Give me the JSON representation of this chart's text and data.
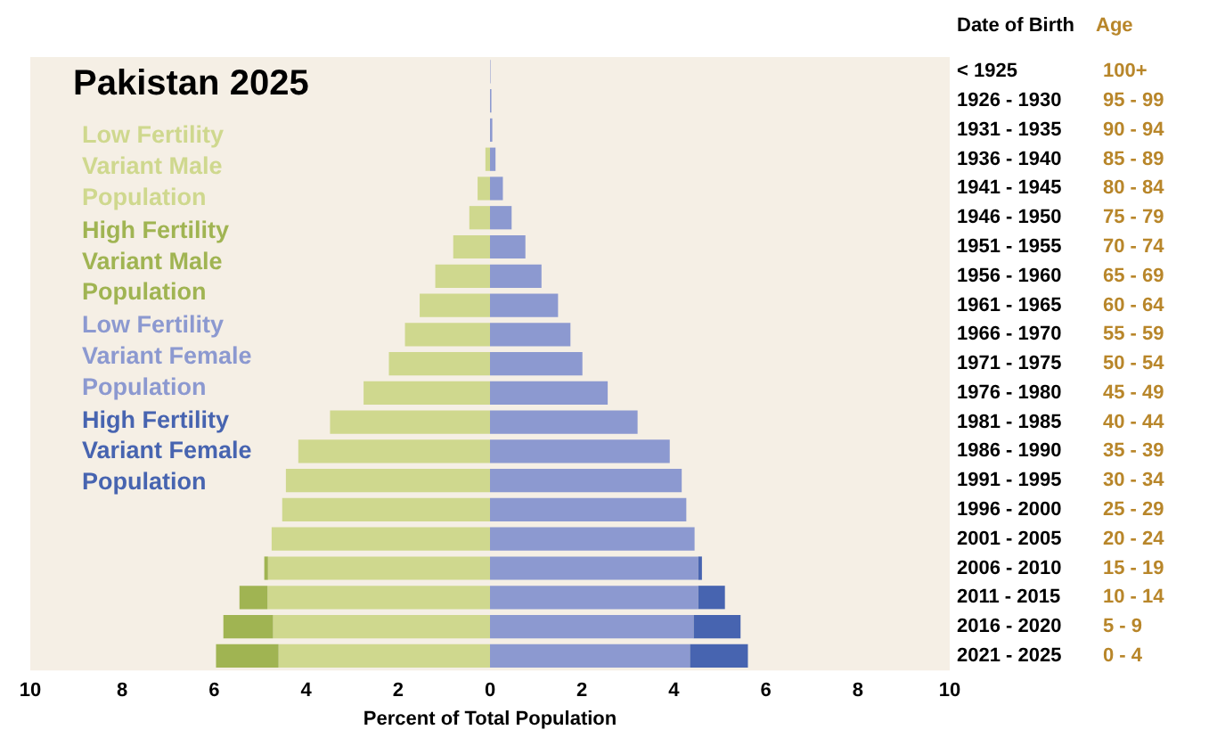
{
  "chart_data": {
    "type": "bar",
    "orientation": "horizontal",
    "stacked": true,
    "title": "Pakistan 2025",
    "xlabel": "Percent of Total Population",
    "ylabel": "Age",
    "y2label": "Date of Birth",
    "categories": [
      "100+",
      "95 - 99",
      "90 - 94",
      "85 - 89",
      "80 - 84",
      "75 - 79",
      "70 - 74",
      "65 - 69",
      "60 - 64",
      "55 - 59",
      "50 - 54",
      "45 - 49",
      "40 - 44",
      "35 - 39",
      "30 - 34",
      "25 - 29",
      "20 - 24",
      "15 - 19",
      "10 - 14",
      "5 - 9",
      "0 - 4"
    ],
    "y2_categories": [
      "< 1925",
      "1926 - 1930",
      "1931 - 1935",
      "1936 - 1940",
      "1941 - 1945",
      "1946 - 1950",
      "1951 - 1955",
      "1956 - 1960",
      "1961 - 1965",
      "1966 - 1970",
      "1971 - 1975",
      "1976 - 1980",
      "1981 - 1985",
      "1986 - 1990",
      "1991 - 1995",
      "1996 - 2000",
      "2001 - 2005",
      "2006 - 2010",
      "2011 - 2015",
      "2016 - 2020",
      "2021 - 2025"
    ],
    "series": [
      {
        "name": "Low Fertility Variant Male Population",
        "color": "#cfd88e",
        "values": [
          null,
          null,
          null,
          -0.1,
          -0.27,
          -0.45,
          -0.8,
          -1.19,
          -1.53,
          -1.85,
          -2.2,
          -2.75,
          -3.48,
          -4.17,
          -4.44,
          -4.52,
          -4.75,
          -4.83,
          -4.84,
          -4.72,
          -4.6
        ]
      },
      {
        "name": "High Fertility Variant Male Population",
        "color": "#a0b452",
        "values": [
          0,
          0,
          0,
          0,
          0,
          0,
          0,
          0,
          0,
          0,
          0,
          0,
          0,
          0,
          0,
          0,
          0,
          -0.08,
          -0.61,
          -1.08,
          -1.36
        ]
      },
      {
        "name": "Low Fertility Variant Female Population",
        "color": "#8c99d0",
        "values": [
          0.01,
          0.03,
          0.05,
          0.12,
          0.28,
          0.47,
          0.77,
          1.12,
          1.48,
          1.75,
          2.01,
          2.56,
          3.21,
          3.91,
          4.17,
          4.27,
          4.45,
          4.53,
          4.53,
          4.43,
          4.35
        ]
      },
      {
        "name": "High Fertility Variant Female Population",
        "color": "#4764b0",
        "values": [
          0,
          0,
          0,
          0,
          0,
          0,
          0,
          0,
          0,
          0,
          0,
          0,
          0,
          0,
          0,
          0,
          0,
          0.08,
          0.58,
          1.02,
          1.26
        ]
      }
    ],
    "xlim": [
      -10,
      10
    ],
    "xticks": [
      {
        "value": -10,
        "label": "10"
      },
      {
        "value": -8,
        "label": "8"
      },
      {
        "value": -6,
        "label": "6"
      },
      {
        "value": -4,
        "label": "4"
      },
      {
        "value": -2,
        "label": "2"
      },
      0,
      2,
      4,
      6,
      8,
      10
    ],
    "legend": "top left",
    "grid": false
  }
}
